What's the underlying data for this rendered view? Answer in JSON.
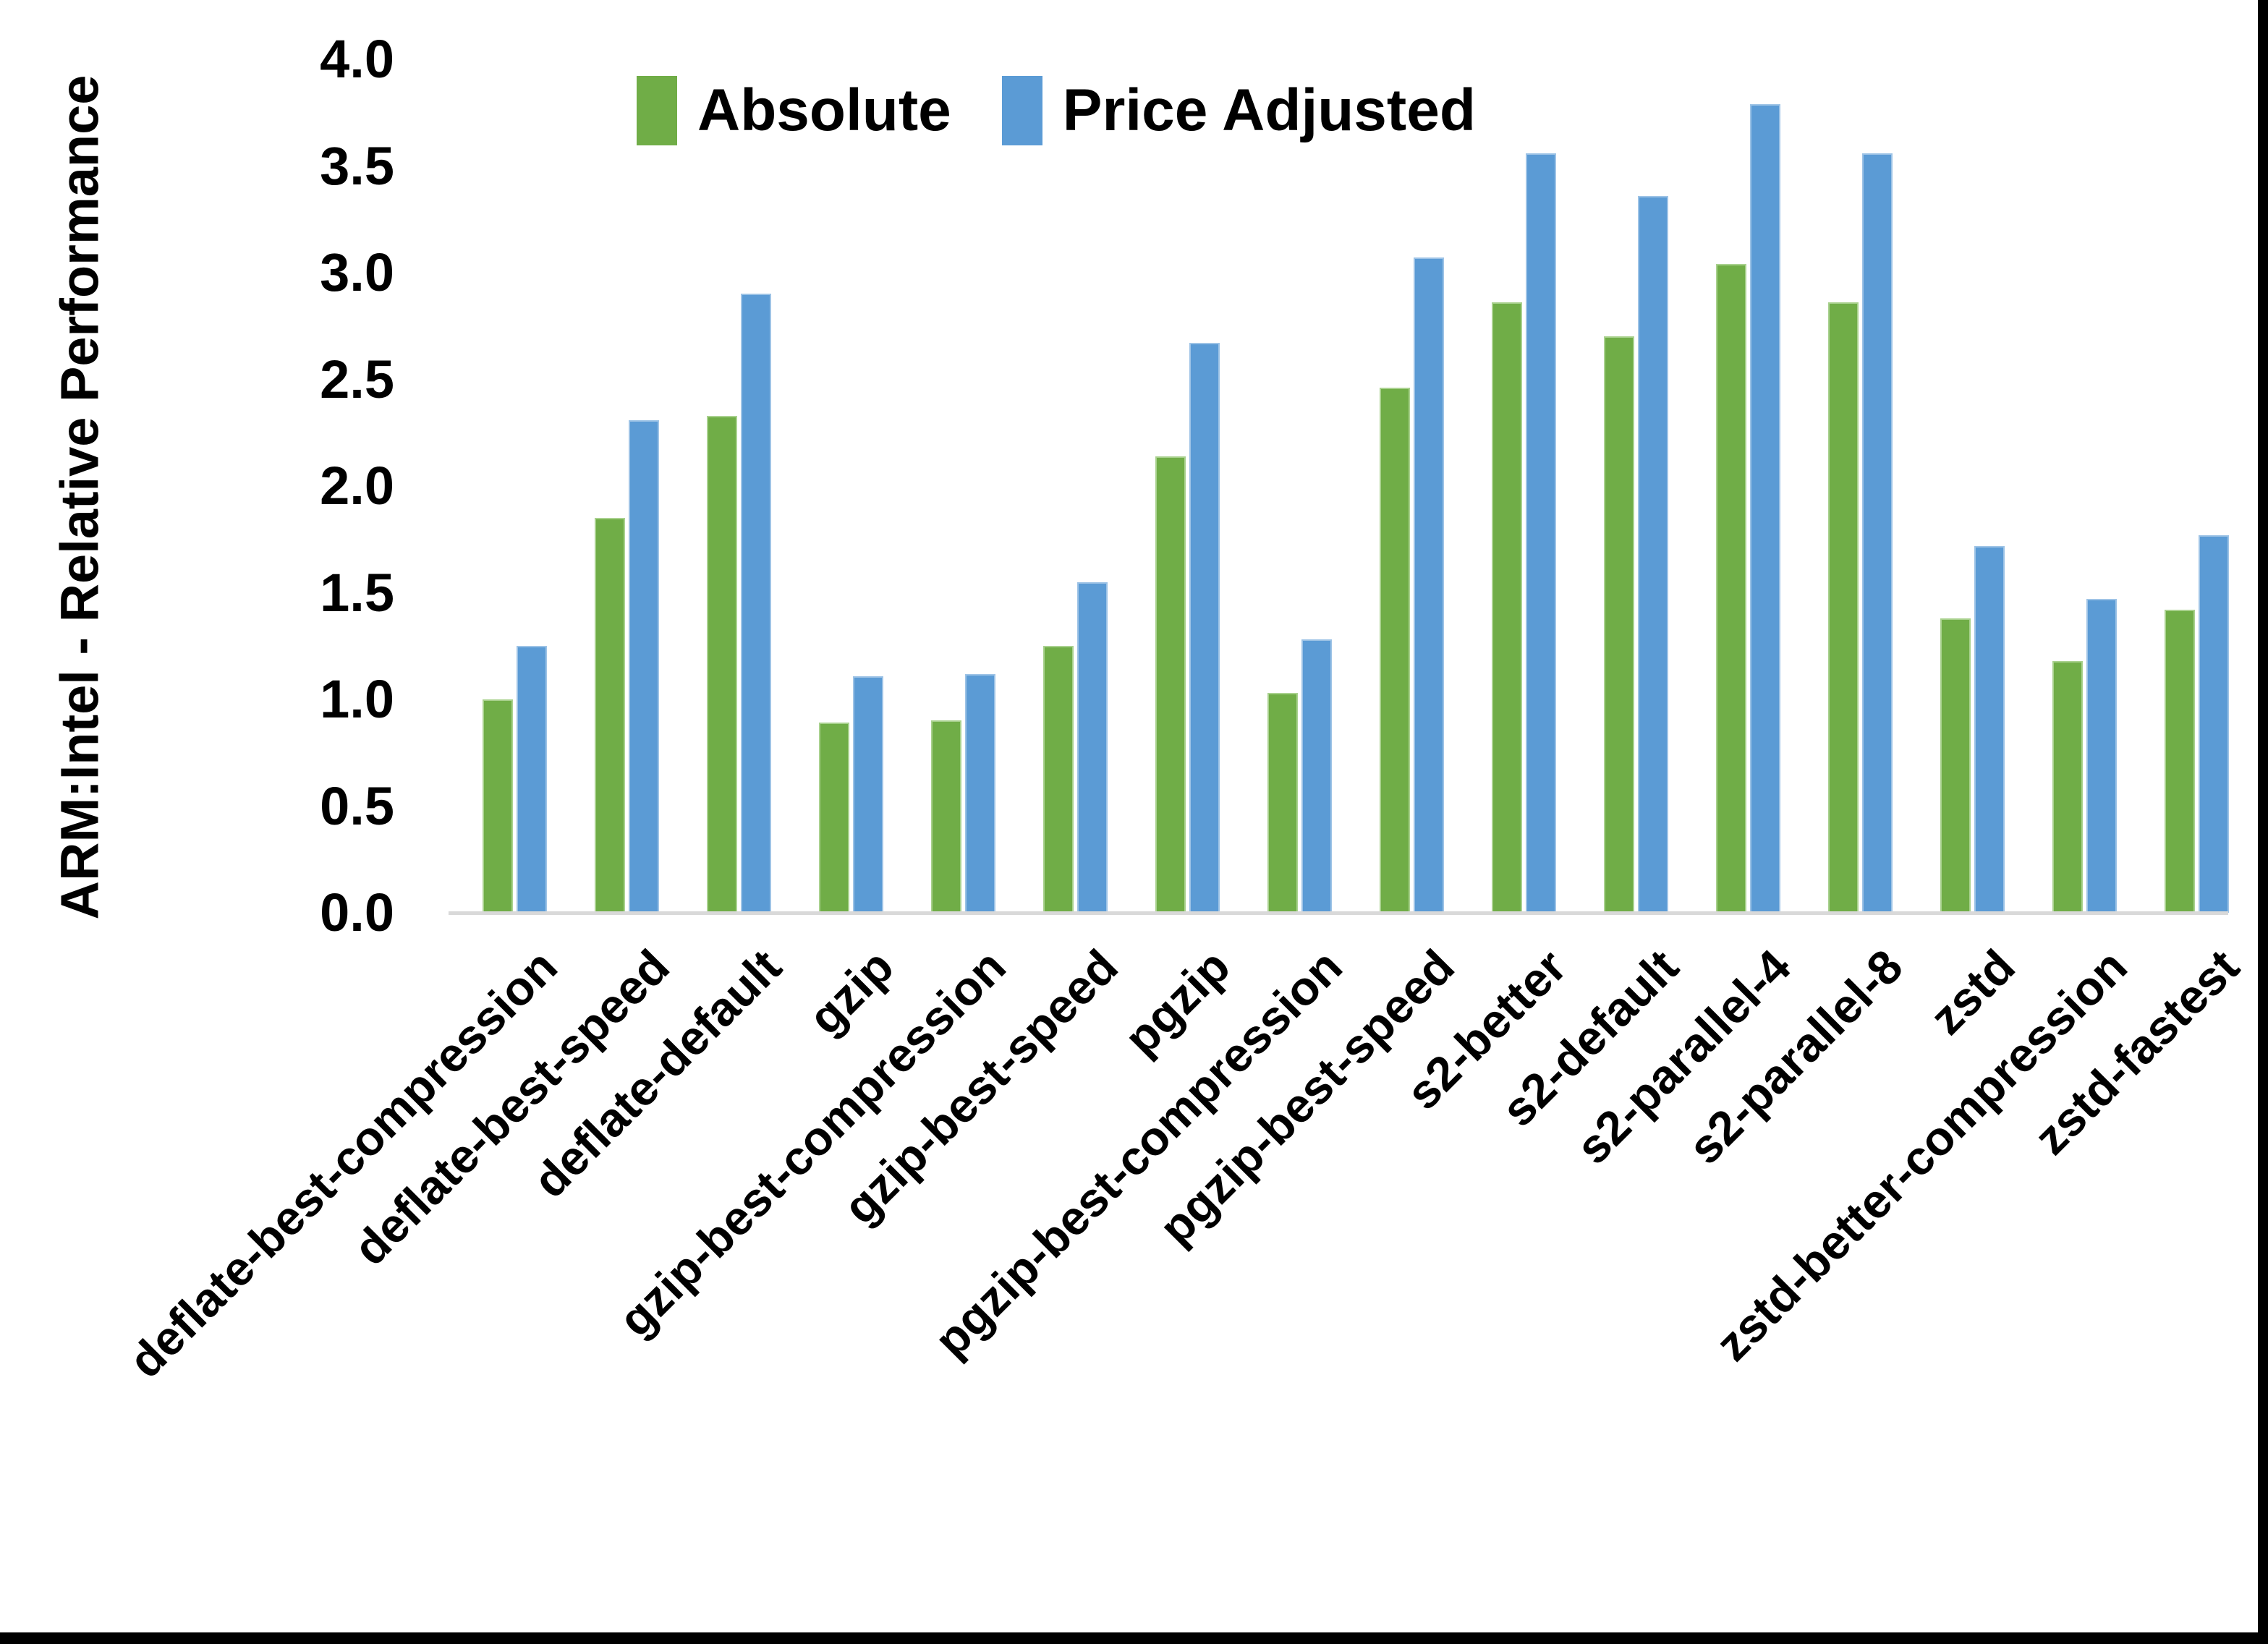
{
  "chart_data": {
    "type": "bar",
    "title": "",
    "ylabel": "ARM:Intel - Relative Performance",
    "xlabel": "",
    "ylim": [
      0.0,
      4.0
    ],
    "ytick_step": 0.5,
    "ytick_labels": [
      "0.0",
      "0.5",
      "1.0",
      "1.5",
      "2.0",
      "2.5",
      "3.0",
      "3.5",
      "4.0"
    ],
    "grid": false,
    "legend_position": "top-center",
    "categories": [
      "deflate-best-compression",
      "deflate-best-speed",
      "deflate-default",
      "gzip",
      "gzip-best-compression",
      "gzip-best-speed",
      "pgzip",
      "pgzip-best-compression",
      "pgzip-best-speed",
      "s2-better",
      "s2-default",
      "s2-parallel-4",
      "s2-parallel-8",
      "zstd",
      "zstd-better-compression",
      "zstd-fastest"
    ],
    "series": [
      {
        "name": "Absolute",
        "color": "#70ad47",
        "values": [
          1.0,
          1.85,
          2.33,
          0.89,
          0.9,
          1.25,
          2.14,
          1.03,
          2.46,
          2.86,
          2.7,
          3.04,
          2.86,
          1.38,
          1.18,
          1.42
        ]
      },
      {
        "name": "Price Adjusted",
        "color": "#5b9bd5",
        "values": [
          1.25,
          2.31,
          2.9,
          1.11,
          1.12,
          1.55,
          2.67,
          1.28,
          3.07,
          3.56,
          3.36,
          3.79,
          3.56,
          1.72,
          1.47,
          1.77
        ]
      }
    ]
  },
  "legend": {
    "absolute_label": "Absolute",
    "adjusted_label": "Price Adjusted"
  },
  "axis": {
    "y_title": "ARM:Intel - Relative Performance",
    "axis_line_color": "#d9d9d9"
  },
  "colors": {
    "absolute_green": "#70ad47",
    "price_adjusted_blue": "#5b9bd5",
    "border_black": "#000000"
  }
}
